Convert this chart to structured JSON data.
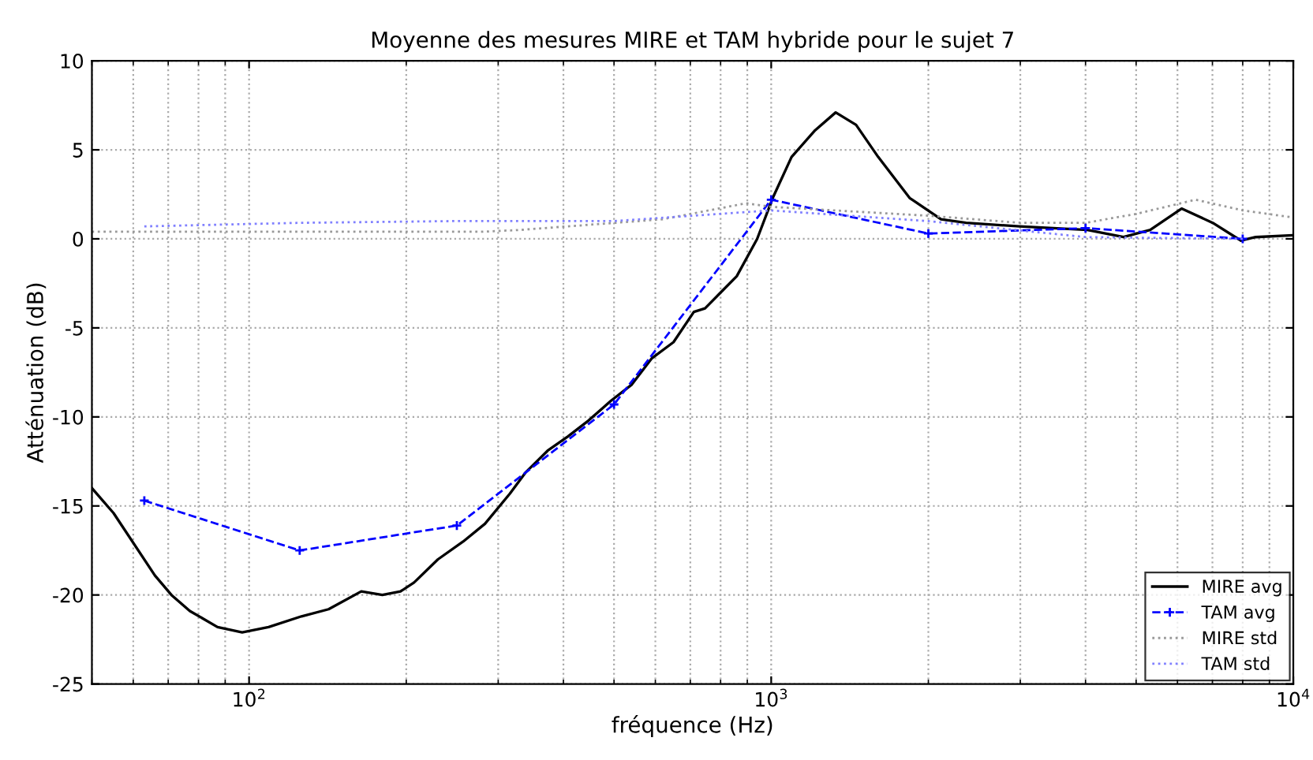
{
  "chart_data": {
    "type": "line",
    "title": "Moyenne des mesures MIRE et TAM hybride pour le sujet 7",
    "xlabel": "fréquence (Hz)",
    "ylabel": "Atténuation (dB)",
    "log": "x",
    "xlim": [
      50,
      10000
    ],
    "ylim": [
      -25,
      10
    ],
    "xticks": [
      {
        "value": 100,
        "label": "10$^{2}$"
      },
      {
        "value": 1000,
        "label": "10$^{3}$"
      },
      {
        "value": 10000,
        "label": "10$^{4}$"
      }
    ],
    "yticks": [
      -25,
      -20,
      -15,
      -10,
      -5,
      0,
      5,
      10
    ],
    "grid": true,
    "legend": "bottom right",
    "series": [
      {
        "name": "MIRE avg",
        "color": "#000000",
        "line_style": "solid",
        "marker": "none",
        "x": [
          50,
          55,
          66,
          71,
          77,
          87,
          97,
          109,
          126,
          142,
          164,
          180,
          195,
          207,
          230,
          257,
          283,
          316,
          339,
          373,
          408,
          447,
          493,
          540,
          591,
          650,
          711,
          747,
          801,
          859,
          940,
          1007,
          1094,
          1214,
          1329,
          1454,
          1603,
          1841,
          2115,
          2362,
          2990,
          4030,
          4730,
          5320,
          6110,
          7010,
          7940,
          8470,
          9930
        ],
        "values": [
          -14.0,
          -15.4,
          -18.9,
          -20.0,
          -20.9,
          -21.8,
          -22.1,
          -21.8,
          -21.2,
          -20.8,
          -19.8,
          -20.0,
          -19.8,
          -19.3,
          -18.0,
          -17.0,
          -16.0,
          -14.3,
          -13.1,
          -11.9,
          -11.1,
          -10.2,
          -9.1,
          -8.2,
          -6.7,
          -5.8,
          -4.1,
          -3.9,
          -3.0,
          -2.1,
          0.0,
          2.3,
          4.6,
          6.1,
          7.1,
          6.4,
          4.6,
          2.3,
          1.1,
          0.9,
          0.7,
          0.5,
          0.1,
          0.5,
          1.7,
          0.9,
          -0.1,
          0.1,
          0.2
        ]
      },
      {
        "name": "TAM avg",
        "color": "#0000ff",
        "line_style": "dashed",
        "marker": "cross",
        "x": [
          63,
          125,
          250,
          500,
          1000,
          2000,
          4000,
          8000
        ],
        "values": [
          -14.7,
          -17.5,
          -16.1,
          -9.3,
          2.2,
          0.3,
          0.6,
          0.0
        ]
      },
      {
        "name": "MIRE std",
        "color": "#999999",
        "line_style": "dotted",
        "marker": "none",
        "x": [
          50,
          280,
          330,
          620,
          895,
          1000,
          2000,
          3000,
          4000,
          5000,
          6500,
          8000,
          10000
        ],
        "values": [
          0.4,
          0.4,
          0.5,
          1.1,
          2.0,
          1.8,
          1.3,
          0.9,
          0.9,
          1.4,
          2.2,
          1.6,
          1.2
        ]
      },
      {
        "name": "TAM std",
        "color": "#8080ff",
        "line_style": "dotted",
        "marker": "none",
        "x": [
          63,
          125,
          250,
          500,
          1000,
          2000,
          4000,
          8000
        ],
        "values": [
          0.7,
          0.9,
          1.0,
          1.0,
          1.6,
          1.0,
          0.1,
          0.0
        ]
      }
    ]
  }
}
